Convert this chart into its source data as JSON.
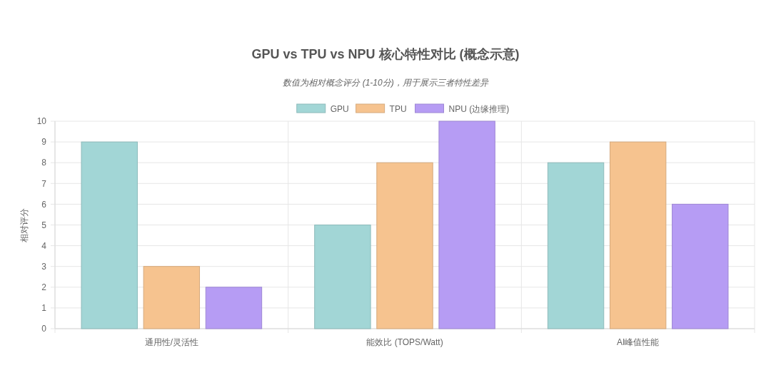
{
  "chart_data": {
    "type": "bar",
    "title": "GPU vs TPU vs NPU 核心特性对比 (概念示意)",
    "subtitle": "数值为相对概念评分 (1-10分)，用于展示三者特性差异",
    "ylabel": "相对评分",
    "categories": [
      "通用性/灵活性",
      "能效比 (TOPS/Watt)",
      "AI峰值性能"
    ],
    "series": [
      {
        "name": "GPU",
        "color": "#a2d6d6",
        "values": [
          9,
          5,
          8
        ]
      },
      {
        "name": "TPU",
        "color": "#f6c38f",
        "values": [
          3,
          8,
          9
        ]
      },
      {
        "name": "NPU (边缘推理)",
        "color": "#b69cf4",
        "values": [
          2,
          10,
          6
        ]
      }
    ],
    "ylim": [
      0,
      10
    ],
    "yticks": [
      0,
      1,
      2,
      3,
      4,
      5,
      6,
      7,
      8,
      9,
      10
    ],
    "grid": true,
    "legend": "top"
  }
}
